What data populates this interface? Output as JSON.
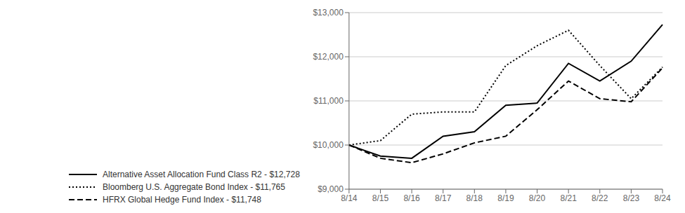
{
  "chart_data": {
    "type": "line",
    "categories": [
      "8/14",
      "8/15",
      "8/16",
      "8/17",
      "8/18",
      "8/19",
      "8/20",
      "8/21",
      "8/22",
      "8/23",
      "8/24"
    ],
    "series": [
      {
        "name": "Alternative Asset Allocation Fund Class R2 - $12,728",
        "color": "#000000",
        "line_style": "solid",
        "values": [
          10000,
          9750,
          9700,
          10200,
          10300,
          10900,
          10950,
          11850,
          11450,
          11900,
          12728
        ]
      },
      {
        "name": "Bloomberg U.S. Aggregate Bond Index - $11,765",
        "color": "#000000",
        "line_style": "dotted",
        "values": [
          10000,
          10100,
          10700,
          10750,
          10750,
          11800,
          12250,
          12600,
          11800,
          11050,
          11765
        ]
      },
      {
        "name": "HFRX Global Hedge Fund Index - $11,748",
        "color": "#000000",
        "line_style": "dashed",
        "values": [
          10000,
          9700,
          9600,
          9800,
          10050,
          10200,
          10800,
          11450,
          11050,
          10980,
          11748
        ]
      }
    ],
    "ylim": [
      9000,
      13000
    ],
    "yticks": [
      {
        "value": 9000,
        "label": "$9,000"
      },
      {
        "value": 10000,
        "label": "$10,000"
      },
      {
        "value": 11000,
        "label": "$11,000"
      },
      {
        "value": 12000,
        "label": "$12,000"
      },
      {
        "value": 13000,
        "label": "$13,000"
      }
    ],
    "grid": true,
    "legend": "bottom"
  }
}
